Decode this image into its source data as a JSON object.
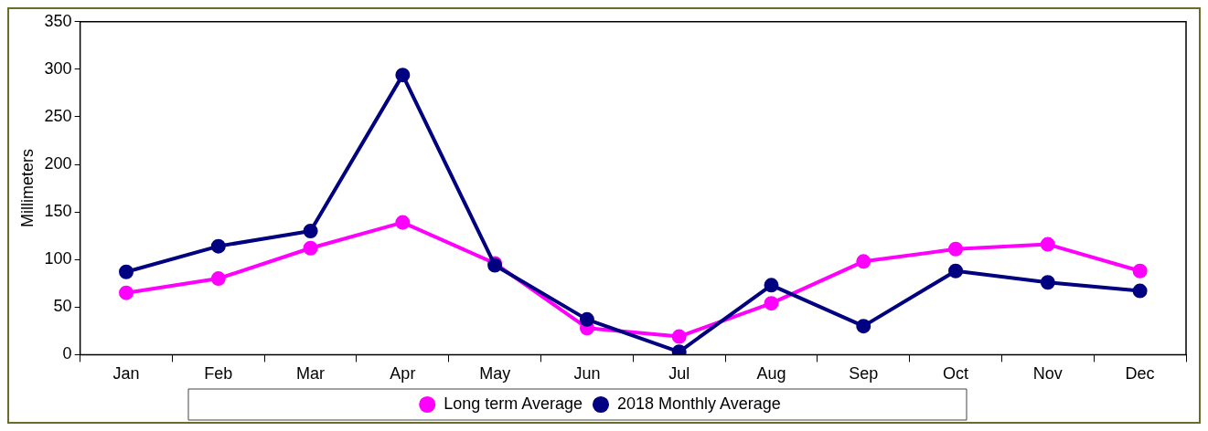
{
  "chart_data": {
    "type": "line",
    "ylabel": "Millimeters",
    "categories": [
      "Jan",
      "Feb",
      "Mar",
      "Apr",
      "May",
      "Jun",
      "Jul",
      "Aug",
      "Sep",
      "Oct",
      "Nov",
      "Dec"
    ],
    "series": [
      {
        "name": "Long term Average",
        "color": "#ff00ff",
        "values": [
          65,
          80,
          112,
          139,
          96,
          28,
          19,
          54,
          98,
          111,
          116,
          88
        ]
      },
      {
        "name": "2018 Monthly Average",
        "color": "#000080",
        "values": [
          87,
          114,
          130,
          294,
          94,
          37,
          3,
          73,
          30,
          88,
          76,
          67
        ]
      }
    ],
    "ylim": [
      0,
      350
    ],
    "yticks": [
      0,
      50,
      100,
      150,
      200,
      250,
      300,
      350
    ],
    "grid": false,
    "legend": "bottom",
    "marker": "circle",
    "line_style": "solid"
  }
}
